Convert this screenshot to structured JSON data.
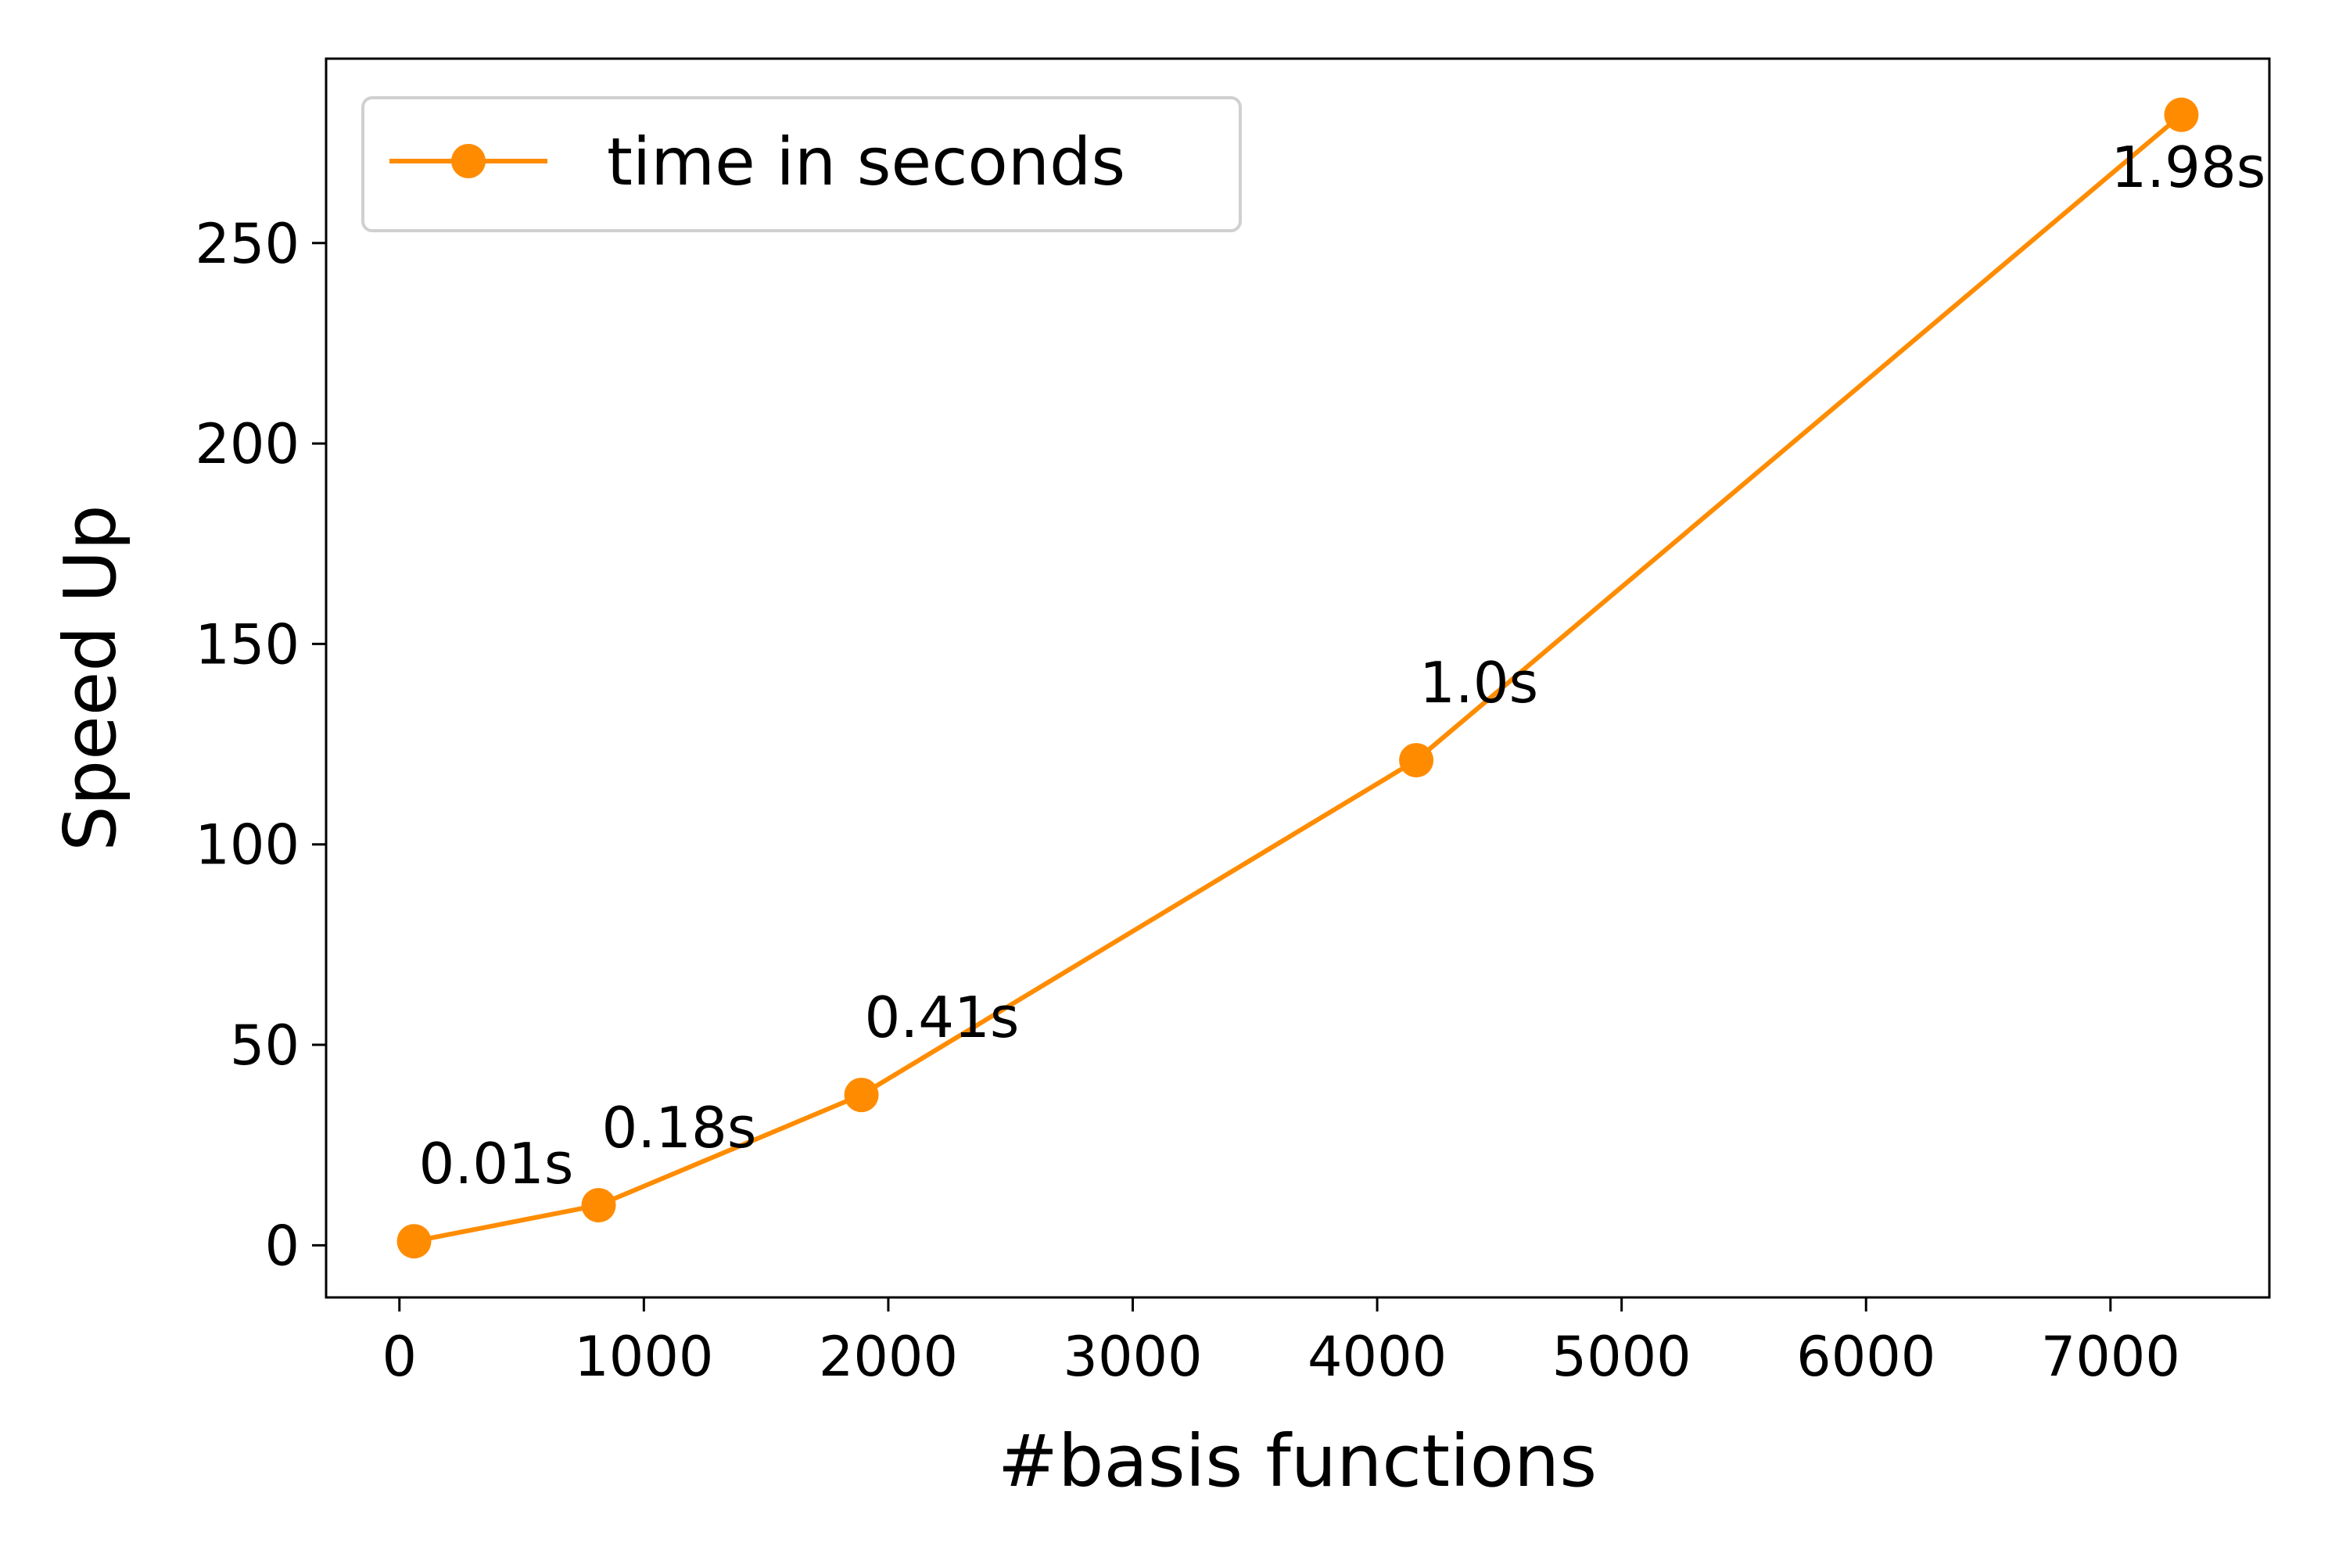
{
  "chart_data": {
    "type": "line",
    "xlabel": "#basis functions",
    "ylabel": "Speed Up",
    "xlim": [
      -300,
      7650
    ],
    "ylim": [
      -13,
      296
    ],
    "xticks": [
      0,
      1000,
      2000,
      3000,
      4000,
      5000,
      6000,
      7000
    ],
    "yticks": [
      0,
      50,
      100,
      150,
      200,
      250
    ],
    "grid": false,
    "legend_position": "top-left",
    "series": [
      {
        "name": "time in seconds",
        "color": "#ff8c00",
        "marker": "circle",
        "x": [
          60,
          815,
          1890,
          4160,
          7290
        ],
        "y": [
          1,
          10,
          37.5,
          121,
          282
        ],
        "labels": [
          "0.01s",
          "0.18s",
          "0.41s",
          "1.0s",
          "1.98s"
        ]
      }
    ]
  }
}
